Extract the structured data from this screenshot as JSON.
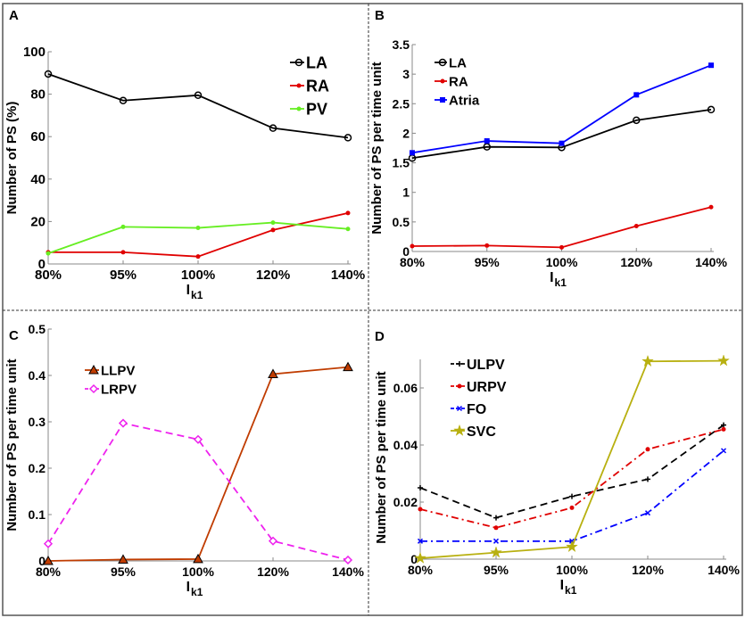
{
  "chart_data": [
    {
      "panel": "A",
      "type": "line",
      "categories": [
        "80%",
        "95%",
        "100%",
        "120%",
        "140%"
      ],
      "xlabel": "I",
      "xlabel_sub": "k1",
      "ylabel": "Number of PS (%)",
      "ylim": [
        0,
        100
      ],
      "yticks": [
        0,
        20,
        40,
        60,
        80,
        100
      ],
      "ytick_labels": [
        "0",
        "20",
        "40",
        "60",
        "80",
        "100"
      ],
      "legend": "top-right",
      "series": [
        {
          "name": "LA",
          "color": "#000000",
          "marker": "circle-open",
          "dash": "solid",
          "values": [
            89.5,
            77,
            79.5,
            64,
            59.5
          ]
        },
        {
          "name": "RA",
          "color": "#e00000",
          "marker": "dot",
          "dash": "solid",
          "values": [
            5.5,
            5.5,
            3.5,
            16,
            24
          ]
        },
        {
          "name": "PV",
          "color": "#66ee22",
          "marker": "dot",
          "dash": "solid",
          "values": [
            5,
            17.5,
            17,
            19.5,
            16.5
          ]
        }
      ]
    },
    {
      "panel": "B",
      "type": "line",
      "categories": [
        "80%",
        "95%",
        "100%",
        "120%",
        "140%"
      ],
      "xlabel": "I",
      "xlabel_sub": "k1",
      "ylabel": "Number of PS per time unit",
      "ylim": [
        0,
        3.5
      ],
      "yticks": [
        0,
        0.5,
        1,
        1.5,
        2,
        2.5,
        3,
        3.5
      ],
      "ytick_labels": [
        "0",
        "0.5",
        "1",
        "1.5",
        "2",
        "2.5",
        "3",
        "3.5"
      ],
      "legend": "top-left",
      "series": [
        {
          "name": "LA",
          "color": "#000000",
          "marker": "circle-open",
          "dash": "solid",
          "values": [
            1.58,
            1.77,
            1.76,
            2.22,
            2.4
          ]
        },
        {
          "name": "RA",
          "color": "#e00000",
          "marker": "dot",
          "dash": "solid",
          "values": [
            0.09,
            0.1,
            0.07,
            0.43,
            0.75
          ]
        },
        {
          "name": "Atria",
          "color": "#0000ff",
          "marker": "square",
          "dash": "solid",
          "values": [
            1.67,
            1.87,
            1.83,
            2.65,
            3.15
          ]
        }
      ]
    },
    {
      "panel": "C",
      "type": "line",
      "categories": [
        "80%",
        "95%",
        "100%",
        "120%",
        "140%"
      ],
      "xlabel": "I",
      "xlabel_sub": "k1",
      "ylabel": "Number of PS  per time unit",
      "ylim": [
        0,
        0.5
      ],
      "yticks": [
        0,
        0.1,
        0.2,
        0.3,
        0.4,
        0.5
      ],
      "ytick_labels": [
        "0",
        "0.1",
        "0.2",
        "0.3",
        "0.4",
        "0.5"
      ],
      "legend": "top-left",
      "series": [
        {
          "name": "LLPV",
          "color": "#c03c00",
          "marker": "triangle",
          "dash": "solid",
          "values": [
            0,
            0.003,
            0.004,
            0.403,
            0.418
          ]
        },
        {
          "name": "LRPV",
          "color": "#ee22ee",
          "marker": "diamond",
          "dash": "dashed",
          "values": [
            0.037,
            0.297,
            0.262,
            0.043,
            0.002
          ]
        }
      ]
    },
    {
      "panel": "D",
      "type": "line",
      "categories": [
        "80%",
        "95%",
        "100%",
        "120%",
        "140%"
      ],
      "xlabel": "I",
      "xlabel_sub": "k1",
      "ylabel": "Number of PS per time unit",
      "ylim": [
        0,
        0.07
      ],
      "yticks": [
        0,
        0.02,
        0.04,
        0.06
      ],
      "ytick_labels": [
        "0",
        "0.02",
        "0.04",
        "0.06"
      ],
      "legend": "top-left",
      "series": [
        {
          "name": "ULPV",
          "color": "#000000",
          "marker": "plus",
          "dash": "dashed",
          "values": [
            0.025,
            0.0145,
            0.022,
            0.028,
            0.047
          ]
        },
        {
          "name": "URPV",
          "color": "#e00000",
          "marker": "dot",
          "dash": "dashdot",
          "values": [
            0.0175,
            0.011,
            0.018,
            0.0385,
            0.0455
          ]
        },
        {
          "name": "FO",
          "color": "#0000ff",
          "marker": "x",
          "dash": "dashdot",
          "values": [
            0.0063,
            0.0063,
            0.0063,
            0.0162,
            0.038
          ]
        },
        {
          "name": "SVC",
          "color": "#b8b010",
          "marker": "star",
          "dash": "solid",
          "values": [
            0.0003,
            0.0023,
            0.0043,
            0.0693,
            0.0695
          ]
        }
      ]
    }
  ]
}
